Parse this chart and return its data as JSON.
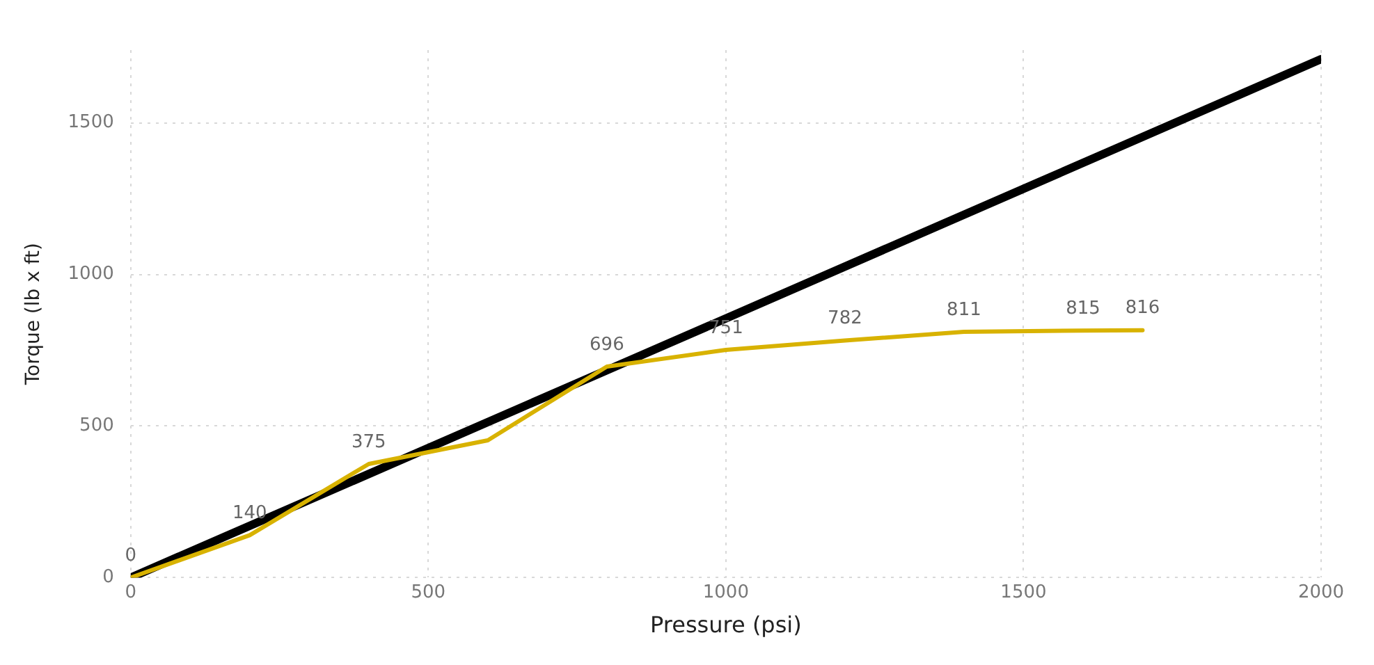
{
  "chart_data": {
    "type": "line",
    "xlabel": "Pressure (psi)",
    "ylabel": "Torque (lb x ft)",
    "xlim": [
      0,
      2000
    ],
    "xticks": [
      0,
      500,
      1000,
      1500,
      2000
    ],
    "ylim": [
      0,
      1740
    ],
    "yticks": [
      0,
      500,
      1000,
      1500
    ],
    "grid": true,
    "legend": false,
    "marker": "none",
    "line_style": "solid",
    "series": [
      {
        "color": "#000000",
        "x": [
          0,
          2000
        ],
        "values": [
          0,
          1710
        ]
      },
      {
        "color": "#d8b200",
        "x": [
          0,
          200,
          400,
          600,
          800,
          1000,
          1200,
          1400,
          1600,
          1700
        ],
        "values": [
          0,
          140,
          375,
          453,
          696,
          751,
          782,
          811,
          815,
          816
        ],
        "value_labels": [
          "0",
          "140",
          "375",
          null,
          "696",
          "751",
          "782",
          "811",
          "815",
          "816"
        ]
      }
    ]
  }
}
